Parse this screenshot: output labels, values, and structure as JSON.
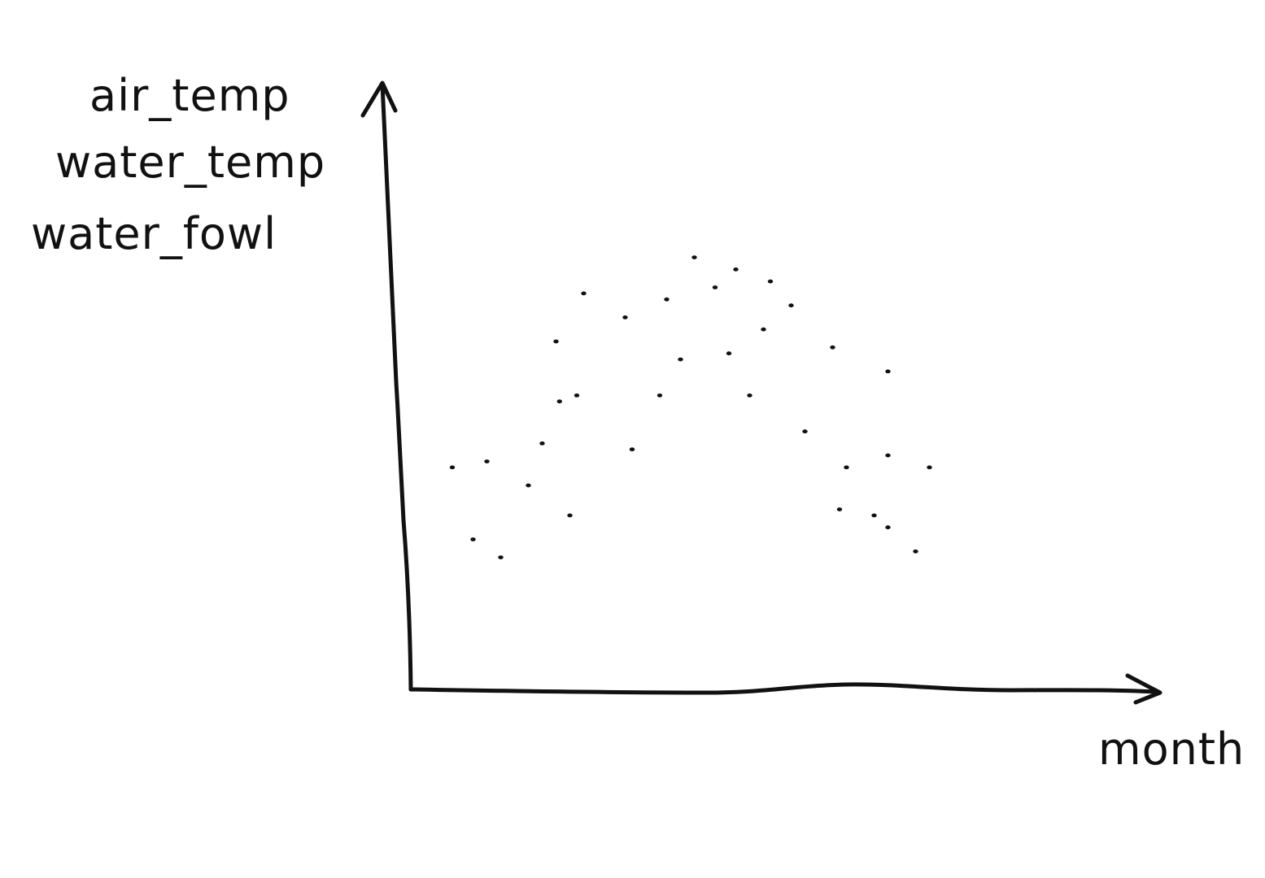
{
  "chart_data": {
    "type": "scatter",
    "title": "",
    "xlabel": "month",
    "ylabel_lines": [
      "air_temp",
      "water_temp",
      "water_fowl"
    ],
    "grid": false,
    "legend": "none",
    "ink_color": "#111111",
    "background_color": "#ffffff",
    "xlim": [
      0,
      12
    ],
    "ylim": [
      0,
      10
    ],
    "series": [
      {
        "points": [
          {
            "x": 0.6,
            "y": 3.7
          },
          {
            "x": 0.9,
            "y": 2.5
          },
          {
            "x": 1.1,
            "y": 3.8
          },
          {
            "x": 1.3,
            "y": 2.2
          },
          {
            "x": 1.7,
            "y": 3.4
          },
          {
            "x": 1.9,
            "y": 4.1
          },
          {
            "x": 2.1,
            "y": 5.8
          },
          {
            "x": 2.15,
            "y": 4.8
          },
          {
            "x": 2.3,
            "y": 2.9
          },
          {
            "x": 2.5,
            "y": 6.6
          },
          {
            "x": 2.4,
            "y": 4.9
          },
          {
            "x": 3.1,
            "y": 6.2
          },
          {
            "x": 3.2,
            "y": 4.0
          },
          {
            "x": 3.6,
            "y": 4.9
          },
          {
            "x": 3.7,
            "y": 6.5
          },
          {
            "x": 3.9,
            "y": 5.5
          },
          {
            "x": 4.1,
            "y": 7.2
          },
          {
            "x": 4.4,
            "y": 6.7
          },
          {
            "x": 4.6,
            "y": 5.6
          },
          {
            "x": 4.7,
            "y": 7.0
          },
          {
            "x": 4.9,
            "y": 4.9
          },
          {
            "x": 5.1,
            "y": 6.0
          },
          {
            "x": 5.2,
            "y": 6.8
          },
          {
            "x": 5.5,
            "y": 6.4
          },
          {
            "x": 5.7,
            "y": 4.3
          },
          {
            "x": 6.1,
            "y": 5.7
          },
          {
            "x": 6.3,
            "y": 3.7
          },
          {
            "x": 6.2,
            "y": 3.0
          },
          {
            "x": 6.7,
            "y": 2.9
          },
          {
            "x": 6.9,
            "y": 5.3
          },
          {
            "x": 6.9,
            "y": 3.9
          },
          {
            "x": 6.9,
            "y": 2.7
          },
          {
            "x": 7.3,
            "y": 2.3
          },
          {
            "x": 7.5,
            "y": 3.7
          }
        ]
      }
    ]
  }
}
